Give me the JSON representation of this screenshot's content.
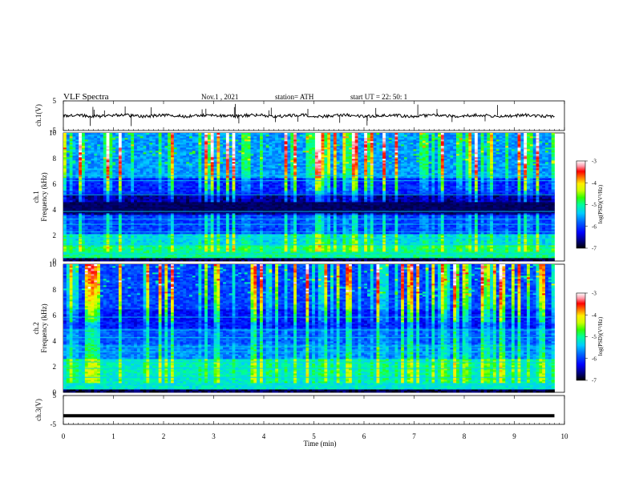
{
  "header": {
    "title": "VLF  Spectra",
    "date": "Nov.1   , 2021",
    "station": "station= ATH",
    "start": "start  UT  =    22: 50: 1"
  },
  "colors": {
    "scale": [
      "#000000",
      "#00007a",
      "#0000ff",
      "#0066ff",
      "#00ccff",
      "#00ff99",
      "#33ff00",
      "#ccff00",
      "#ffee00",
      "#ff6600",
      "#ff0000",
      "#ff99aa",
      "#ffffff"
    ],
    "trace": "#000000",
    "frame": "#000000"
  },
  "chart_data": [
    {
      "type": "line",
      "panel": "ch1-waveform",
      "ylabel": "ch.1(V)",
      "ylim": [
        -5,
        5
      ],
      "yticks": [
        "5",
        "-5"
      ],
      "xlim": [
        0,
        10
      ],
      "baseline": 0,
      "note": "broadband VLF waveform, small fluctuation around 0 V with occasional spikes"
    },
    {
      "type": "heatmap",
      "panel": "ch1-spectrogram",
      "ylabel": "ch.1\nFrequency (kHz)",
      "ylabel_lines": [
        "ch.1",
        "Frequency  (kHz)"
      ],
      "ylim": [
        0,
        10
      ],
      "yticks": [
        "0",
        "2",
        "4",
        "6",
        "8",
        "10"
      ],
      "xlim": [
        0,
        9.8
      ],
      "colorbar": {
        "label": "log(PSD)(V²/Hz)",
        "range": [
          -7,
          -3
        ],
        "ticks": [
          "-3",
          "-4",
          "-5",
          "-6",
          "-7"
        ]
      }
    },
    {
      "type": "heatmap",
      "panel": "ch2-spectrogram",
      "ylabel_lines": [
        "ch.2",
        "Frequency  (kHz)"
      ],
      "ylim": [
        0,
        10
      ],
      "yticks": [
        "0",
        "2",
        "4",
        "6",
        "8",
        "10"
      ],
      "xlim": [
        0,
        9.8
      ],
      "colorbar": {
        "label": "log(PSD)(V²/Hz)",
        "range": [
          -7,
          -3
        ],
        "ticks": [
          "-3",
          "-4",
          "-5",
          "-6",
          "-7"
        ]
      }
    },
    {
      "type": "line",
      "panel": "ch3-waveform",
      "ylabel": "ch.3(V)",
      "ylim": [
        -5,
        5
      ],
      "yticks": [
        "5",
        "-5"
      ],
      "xlim": [
        0,
        10
      ],
      "baseline": -2,
      "note": "flat trace at about -2 V"
    }
  ],
  "xaxis": {
    "label": "Time  (min)",
    "ticks": [
      "0",
      "1",
      "2",
      "3",
      "4",
      "5",
      "6",
      "7",
      "8",
      "9",
      "10"
    ],
    "range": [
      0,
      10
    ]
  }
}
